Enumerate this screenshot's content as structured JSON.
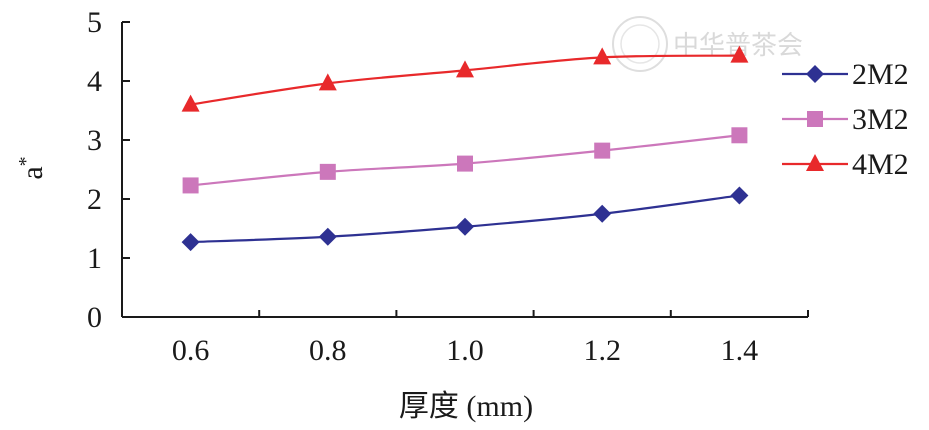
{
  "chart_data": {
    "type": "line",
    "title": "",
    "xlabel": "厚度 (mm)",
    "ylabel": "a*",
    "x": [
      0.6,
      0.8,
      1.0,
      1.2,
      1.4
    ],
    "x_tick_labels": [
      "0.6",
      "0.8",
      "1.0",
      "1.2",
      "1.4"
    ],
    "y_ticks": [
      0,
      1,
      2,
      3,
      4,
      5
    ],
    "y_tick_labels": [
      "0",
      "1",
      "2",
      "3",
      "4",
      "5"
    ],
    "xlim": [
      0.5,
      1.5
    ],
    "ylim": [
      0,
      5
    ],
    "grid": false,
    "legend_position": "right",
    "series": [
      {
        "name": "2M2",
        "values": [
          1.27,
          1.36,
          1.53,
          1.75,
          2.06
        ],
        "color": "#2e3192",
        "marker": "diamond"
      },
      {
        "name": "3M2",
        "values": [
          2.23,
          2.46,
          2.6,
          2.82,
          3.08
        ],
        "color": "#cc77bb",
        "marker": "square"
      },
      {
        "name": "4M2",
        "values": [
          3.6,
          3.96,
          4.18,
          4.4,
          4.43
        ],
        "color": "#e8292b",
        "marker": "triangle"
      }
    ]
  },
  "watermark": {
    "text": "中华普茶会",
    "color": "#d9d9d9"
  }
}
